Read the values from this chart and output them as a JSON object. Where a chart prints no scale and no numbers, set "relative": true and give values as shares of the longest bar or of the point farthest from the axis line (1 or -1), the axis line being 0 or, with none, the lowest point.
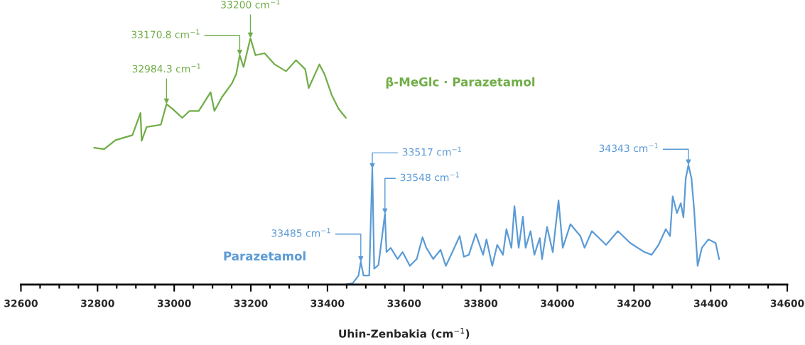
{
  "chart_data": {
    "type": "line",
    "relative": true,
    "xlabel": "Uhin-Zenbakia (cm$^{−1}$)",
    "xlim": [
      32600,
      34600
    ],
    "xticks": [
      32600,
      {
        "value": 32650,
        "label": null
      },
      {
        "value": 32700,
        "label": null
      },
      {
        "value": 32750,
        "label": null
      },
      32800,
      {
        "value": 32850,
        "label": null
      },
      {
        "value": 32900,
        "label": null
      },
      {
        "value": 32950,
        "label": null
      },
      33000,
      {
        "value": 33050,
        "label": null
      },
      {
        "value": 33100,
        "label": null
      },
      {
        "value": 33150,
        "label": null
      },
      33200,
      {
        "value": 33250,
        "label": null
      },
      {
        "value": 33300,
        "label": null
      },
      {
        "value": 33350,
        "label": null
      },
      33400,
      {
        "value": 33450,
        "label": null
      },
      {
        "value": 33500,
        "label": null
      },
      {
        "value": 33550,
        "label": null
      },
      33600,
      {
        "value": 33650,
        "label": null
      },
      {
        "value": 33700,
        "label": null
      },
      {
        "value": 33750,
        "label": null
      },
      33800,
      {
        "value": 33850,
        "label": null
      },
      {
        "value": 33900,
        "label": null
      },
      {
        "value": 33950,
        "label": null
      },
      34000,
      {
        "value": 34050,
        "label": null
      },
      {
        "value": 34100,
        "label": null
      },
      {
        "value": 34150,
        "label": null
      },
      34200,
      {
        "value": 34250,
        "label": null
      },
      {
        "value": 34300,
        "label": null
      },
      {
        "value": 34350,
        "label": null
      },
      34400,
      {
        "value": 34450,
        "label": null
      },
      {
        "value": 34500,
        "label": null
      },
      {
        "value": 34550,
        "label": null
      },
      34600
    ],
    "grid": false,
    "marker": "none",
    "line_style": "solid",
    "series": [
      {
        "name": "β-MeGlc · Parazetamol",
        "color": "#70ad47",
        "x": [
          32791,
          32817,
          32847,
          32891,
          32912,
          32915,
          32928,
          32965,
          32980,
          32995,
          33021,
          33040,
          33064,
          33095,
          33105,
          33125,
          33151,
          33162,
          33171,
          33181,
          33199,
          33212,
          33236,
          33262,
          33292,
          33318,
          33342,
          33351,
          33379,
          33392,
          33411,
          33429,
          33448
        ],
        "values": [
          0.555,
          0.549,
          0.586,
          0.606,
          0.696,
          0.583,
          0.639,
          0.648,
          0.732,
          0.713,
          0.676,
          0.704,
          0.704,
          0.78,
          0.704,
          0.761,
          0.817,
          0.854,
          0.93,
          0.882,
          1.0,
          0.93,
          0.938,
          0.893,
          0.865,
          0.91,
          0.873,
          0.797,
          0.893,
          0.854,
          0.769,
          0.713,
          0.676
        ]
      },
      {
        "name": "Parazetamol",
        "color": "#5b9bd5",
        "x": [
          33448,
          33466,
          33481,
          33487,
          33494,
          33509,
          33517,
          33522,
          33533,
          33550,
          33554,
          33565,
          33583,
          33596,
          33615,
          33633,
          33648,
          33658,
          33676,
          33695,
          33709,
          33726,
          33745,
          33756,
          33769,
          33787,
          33806,
          33815,
          33830,
          33843,
          33858,
          33867,
          33880,
          33888,
          33899,
          33910,
          33917,
          33930,
          33940,
          33954,
          33960,
          33973,
          33988,
          34003,
          34014,
          34034,
          34060,
          34071,
          34090,
          34127,
          34158,
          34190,
          34227,
          34246,
          34264,
          34283,
          34294,
          34301,
          34312,
          34322,
          34329,
          34335,
          34342,
          34350,
          34357,
          34366,
          34377,
          34394,
          34413,
          34422
        ],
        "values": [
          0.0,
          0.006,
          0.037,
          0.093,
          0.037,
          0.037,
          0.47,
          0.065,
          0.079,
          0.287,
          0.132,
          0.149,
          0.104,
          0.132,
          0.076,
          0.104,
          0.192,
          0.149,
          0.104,
          0.141,
          0.076,
          0.132,
          0.197,
          0.113,
          0.121,
          0.206,
          0.121,
          0.183,
          0.076,
          0.161,
          0.121,
          0.225,
          0.149,
          0.318,
          0.149,
          0.276,
          0.149,
          0.217,
          0.121,
          0.189,
          0.104,
          0.234,
          0.132,
          0.341,
          0.149,
          0.245,
          0.197,
          0.149,
          0.217,
          0.161,
          0.217,
          0.169,
          0.132,
          0.121,
          0.161,
          0.225,
          0.197,
          0.358,
          0.29,
          0.33,
          0.273,
          0.431,
          0.485,
          0.431,
          0.301,
          0.076,
          0.149,
          0.183,
          0.169,
          0.104
        ]
      }
    ],
    "annotations": [
      {
        "text": "32984.3 cm$^{−1}$",
        "x": 32980,
        "y": 0.732
      },
      {
        "text": "33170.8 cm$^{−1}$",
        "x": 33171,
        "y": 0.93
      },
      {
        "text": "33200 cm$^{−1}$",
        "x": 33199,
        "y": 1.0
      },
      {
        "text": "33485 cm$^{−1}$",
        "x": 33487,
        "y": 0.093
      },
      {
        "text": "33517 cm$^{−1}$",
        "x": 33517,
        "y": 0.47
      },
      {
        "text": "33548 cm$^{−1}$",
        "x": 33550,
        "y": 0.287
      },
      {
        "text": "34343 cm$^{−1}$",
        "x": 34342,
        "y": 0.485
      }
    ]
  }
}
